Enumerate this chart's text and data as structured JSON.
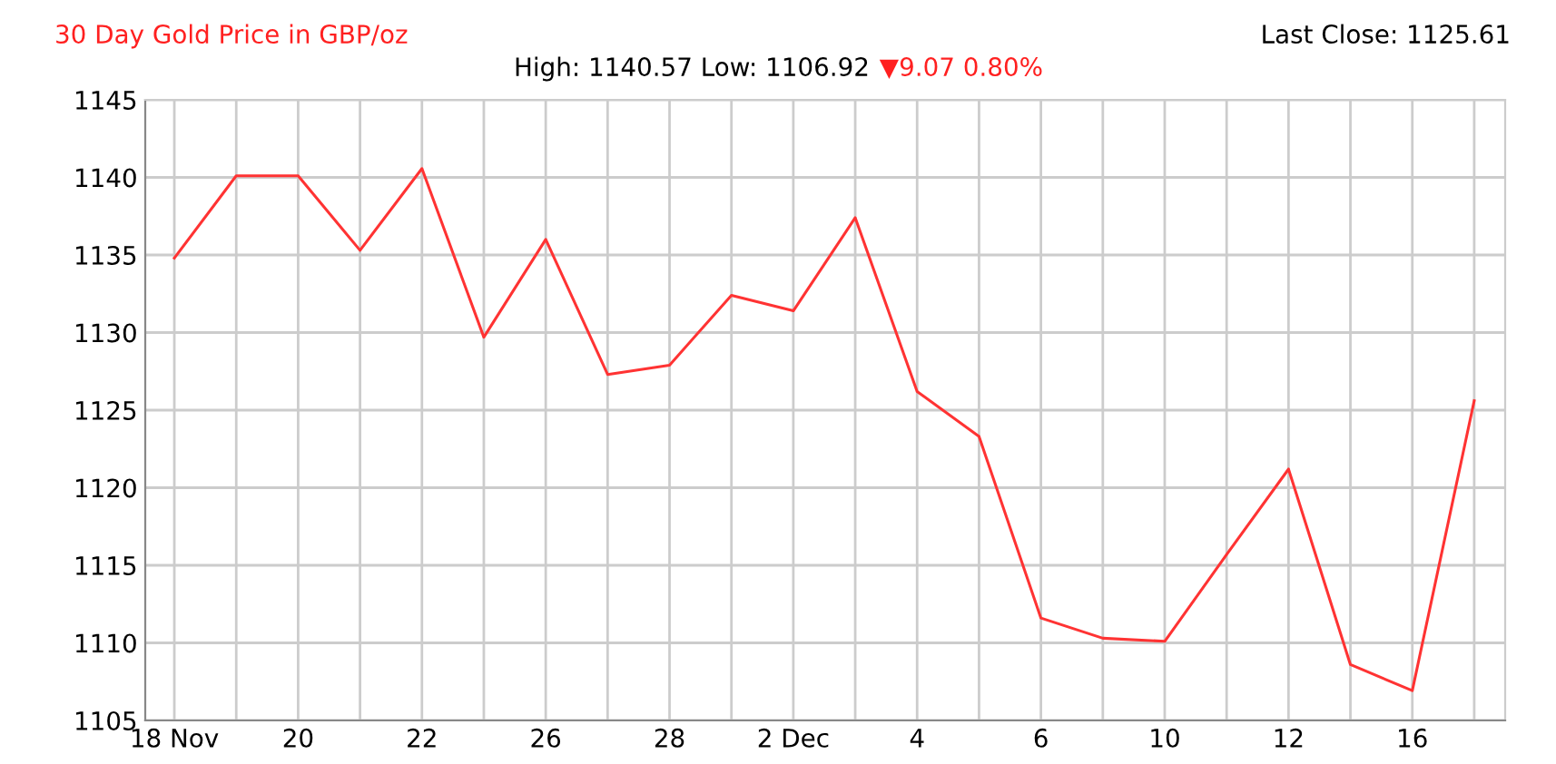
{
  "chart_data": {
    "type": "line",
    "title": "30 Day Gold Price in GBP/oz",
    "subtitle": "High: 1140.57 Low: 1106.92",
    "annotations": [
      "▼9.07 0.80%",
      "Last Close: 1125.61"
    ],
    "categories": [
      "18 Nov",
      null,
      "20",
      null,
      "22",
      null,
      "26",
      null,
      "28",
      null,
      "2 Dec",
      null,
      "4",
      null,
      "6",
      null,
      "10",
      null,
      "12",
      null,
      "16",
      null
    ],
    "series": [
      {
        "color": "#ff3333",
        "values": [
          1134.8,
          1140.1,
          1140.1,
          1135.3,
          1140.57,
          1129.7,
          1136.0,
          1127.3,
          1127.9,
          1132.4,
          1131.4,
          1137.4,
          1126.2,
          1123.3,
          1111.6,
          1110.3,
          1110.1,
          1115.7,
          1121.2,
          1108.6,
          1106.92,
          1125.61
        ]
      }
    ],
    "ylim": [
      1105,
      1145
    ],
    "yticks": [
      1105,
      1110,
      1115,
      1120,
      1125,
      1130,
      1135,
      1140,
      1145
    ],
    "grid": true,
    "legend": false,
    "marker": "none",
    "line_style": "solid"
  }
}
